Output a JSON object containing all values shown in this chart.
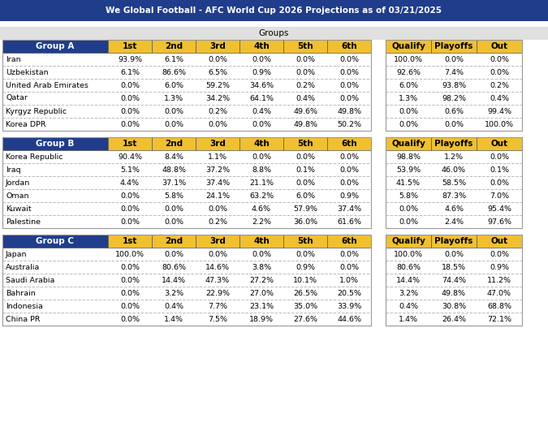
{
  "title": "We Global Football - AFC World Cup 2026 Projections as of 03/21/2025",
  "title_bg": "#1f3d8a",
  "title_fg": "#ffffff",
  "groups_label": "Groups",
  "groups_label_bg": "#e0e0e0",
  "col_headers_1st6": [
    "1st",
    "2nd",
    "3rd",
    "4th",
    "5th",
    "6th"
  ],
  "col_headers_last3": [
    "Qualify",
    "Playoffs",
    "Out"
  ],
  "group_label_bg": "#1f3d8a",
  "group_label_fg": "#ffffff",
  "sub_col_header_bg": "#f0c030",
  "sub_col_header_fg": "#000000",
  "separator_color": "#bbbbbb",
  "gap_color": "#ffffff",
  "outer_border": "#aaaaaa",
  "groups": [
    {
      "name": "Group A",
      "teams": [
        "Iran",
        "Uzbekistan",
        "United Arab Emirates",
        "Qatar",
        "Kyrgyz Republic",
        "Korea DPR"
      ],
      "data": [
        [
          93.9,
          6.1,
          0.0,
          0.0,
          0.0,
          0.0,
          100.0,
          0.0,
          0.0
        ],
        [
          6.1,
          86.6,
          6.5,
          0.9,
          0.0,
          0.0,
          92.6,
          7.4,
          0.0
        ],
        [
          0.0,
          6.0,
          59.2,
          34.6,
          0.2,
          0.0,
          6.0,
          93.8,
          0.2
        ],
        [
          0.0,
          1.3,
          34.2,
          64.1,
          0.4,
          0.0,
          1.3,
          98.2,
          0.4
        ],
        [
          0.0,
          0.0,
          0.2,
          0.4,
          49.6,
          49.8,
          0.0,
          0.6,
          99.4
        ],
        [
          0.0,
          0.0,
          0.0,
          0.0,
          49.8,
          50.2,
          0.0,
          0.0,
          100.0
        ]
      ]
    },
    {
      "name": "Group B",
      "teams": [
        "Korea Republic",
        "Iraq",
        "Jordan",
        "Oman",
        "Kuwait",
        "Palestine"
      ],
      "data": [
        [
          90.4,
          8.4,
          1.1,
          0.0,
          0.0,
          0.0,
          98.8,
          1.2,
          0.0
        ],
        [
          5.1,
          48.8,
          37.2,
          8.8,
          0.1,
          0.0,
          53.9,
          46.0,
          0.1
        ],
        [
          4.4,
          37.1,
          37.4,
          21.1,
          0.0,
          0.0,
          41.5,
          58.5,
          0.0
        ],
        [
          0.0,
          5.8,
          24.1,
          63.2,
          6.0,
          0.9,
          5.8,
          87.3,
          7.0
        ],
        [
          0.0,
          0.0,
          0.0,
          4.6,
          57.9,
          37.4,
          0.0,
          4.6,
          95.4
        ],
        [
          0.0,
          0.0,
          0.2,
          2.2,
          36.0,
          61.6,
          0.0,
          2.4,
          97.6
        ]
      ]
    },
    {
      "name": "Group C",
      "teams": [
        "Japan",
        "Australia",
        "Saudi Arabia",
        "Bahrain",
        "Indonesia",
        "China PR"
      ],
      "data": [
        [
          100.0,
          0.0,
          0.0,
          0.0,
          0.0,
          0.0,
          100.0,
          0.0,
          0.0
        ],
        [
          0.0,
          80.6,
          14.6,
          3.8,
          0.9,
          0.0,
          80.6,
          18.5,
          0.9
        ],
        [
          0.0,
          14.4,
          47.3,
          27.2,
          10.1,
          1.0,
          14.4,
          74.4,
          11.2
        ],
        [
          0.0,
          3.2,
          22.9,
          27.0,
          26.5,
          20.5,
          3.2,
          49.8,
          47.0
        ],
        [
          0.0,
          0.4,
          7.7,
          23.1,
          35.0,
          33.9,
          0.4,
          30.8,
          68.8
        ],
        [
          0.0,
          1.4,
          7.5,
          18.9,
          27.6,
          44.6,
          1.4,
          26.4,
          72.1
        ]
      ]
    }
  ],
  "figsize": [
    6.75,
    5.21
  ],
  "dpi": 100
}
